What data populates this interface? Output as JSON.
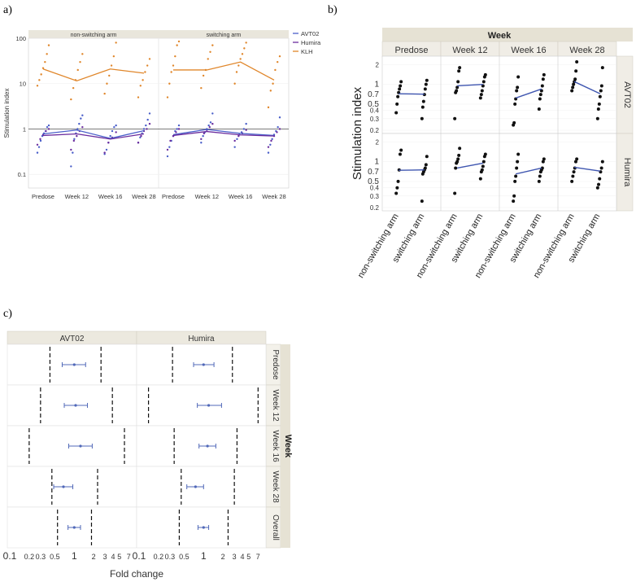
{
  "panel_labels": {
    "a": "a)",
    "b": "b)",
    "c": "c)"
  },
  "chart_data": [
    {
      "type": "scatter",
      "panel": "a",
      "ylabel": "Stimulation index",
      "yscale": "log",
      "ylim": [
        0.05,
        100
      ],
      "yticks": [
        0.1,
        1,
        10,
        100
      ],
      "yticklabels": [
        "0.1",
        "1",
        "10",
        "100"
      ],
      "reference_line": 1,
      "facets": [
        "non-switching arm",
        "switching arm"
      ],
      "categories": [
        "Predose",
        "Week 12",
        "Week 16",
        "Week 28"
      ],
      "legend": [
        "AVT02",
        "Humira",
        "KLH"
      ],
      "legend_position": "right",
      "colors": {
        "AVT02": "#4a5fc9",
        "Humira": "#6b2d9e",
        "KLH": "#e0862a"
      },
      "series": [
        {
          "name": "AVT02",
          "facet": "non-switching arm",
          "means": [
            0.78,
            0.95,
            0.62,
            0.92
          ]
        },
        {
          "name": "Humira",
          "facet": "non-switching arm",
          "means": [
            0.72,
            0.78,
            0.6,
            0.78
          ]
        },
        {
          "name": "KLH",
          "facet": "non-switching arm",
          "means": [
            21,
            11.5,
            21,
            17
          ]
        },
        {
          "name": "AVT02",
          "facet": "switching arm",
          "means": [
            0.75,
            0.98,
            0.8,
            0.72
          ]
        },
        {
          "name": "Humira",
          "facet": "switching arm",
          "means": [
            0.72,
            0.88,
            0.74,
            0.7
          ]
        },
        {
          "name": "KLH",
          "facet": "switching arm",
          "means": [
            20,
            20,
            30,
            12
          ]
        }
      ],
      "points": {
        "AVT02": [
          [
            [
              0.3,
              0.4,
              0.55,
              0.7,
              0.8,
              0.9,
              1.1,
              1.2
            ],
            [
              0.15,
              0.3,
              0.6,
              0.8,
              1.0,
              1.3,
              1.7,
              2.0
            ],
            [
              0.28,
              0.35,
              0.5,
              0.7,
              0.9,
              1.1,
              1.2
            ],
            [
              0.5,
              0.65,
              0.8,
              1.0,
              1.2,
              1.6,
              2.2
            ]
          ],
          [
            [
              0.25,
              0.4,
              0.55,
              0.7,
              0.9,
              1.0,
              1.2
            ],
            [
              0.5,
              0.7,
              0.85,
              1.0,
              1.2,
              1.4,
              2.2
            ],
            [
              0.4,
              0.6,
              0.75,
              0.85,
              1.0,
              1.3
            ],
            [
              0.3,
              0.45,
              0.6,
              0.75,
              0.9,
              1.1,
              1.8
            ]
          ]
        ],
        "Humira": [
          [
            [
              0.45,
              0.6,
              0.75,
              0.9,
              1.0
            ],
            [
              0.35,
              0.55,
              0.7,
              0.9,
              1.1
            ],
            [
              0.3,
              0.5,
              0.65,
              0.85
            ],
            [
              0.5,
              0.7,
              0.9,
              1.0,
              1.3
            ]
          ],
          [
            [
              0.35,
              0.55,
              0.7,
              0.85,
              1.0
            ],
            [
              0.6,
              0.8,
              0.95,
              1.1,
              1.3
            ],
            [
              0.55,
              0.7,
              0.8,
              0.95
            ],
            [
              0.4,
              0.55,
              0.7,
              0.85,
              1.0
            ]
          ]
        ],
        "KLH": [
          [
            [
              9,
              12,
              16,
              22,
              30,
              45,
              70
            ],
            [
              4.5,
              8,
              12,
              20,
              30,
              45
            ],
            [
              6,
              10,
              15,
              25,
              40,
              80
            ],
            [
              5,
              9,
              12,
              18,
              25,
              35
            ]
          ],
          [
            [
              5,
              10,
              18,
              25,
              40,
              70,
              85
            ],
            [
              8,
              15,
              20,
              35,
              50,
              70
            ],
            [
              10,
              18,
              25,
              35,
              45,
              60,
              80
            ],
            [
              3,
              7,
              10,
              20,
              30,
              40
            ]
          ]
        ]
      }
    },
    {
      "type": "scatter",
      "panel": "b",
      "title": "Week",
      "ylabel": "Stimulation index",
      "yscale": "log",
      "ylim": [
        0.2,
        2.4
      ],
      "yticks": [
        0.2,
        0.3,
        0.4,
        0.5,
        0.7,
        1,
        2
      ],
      "yticklabels": [
        "0.2",
        "0.3",
        "0.4",
        "0.5",
        "0.7",
        "1",
        "2"
      ],
      "columns": [
        "Predose",
        "Week 12",
        "Week 16",
        "Week 28"
      ],
      "rows": [
        "AVT02",
        "Humira"
      ],
      "x_categories": [
        "non-switching arm",
        "switching arm"
      ],
      "line_color": "#3f56b0",
      "means": {
        "AVT02": [
          [
            0.72,
            0.71
          ],
          [
            0.95,
            1.0
          ],
          [
            0.62,
            0.85
          ],
          [
            1.1,
            0.72
          ]
        ],
        "Humira": [
          [
            0.74,
            0.75
          ],
          [
            0.8,
            0.95
          ],
          [
            0.65,
            0.8
          ],
          [
            0.82,
            0.72
          ]
        ]
      },
      "points": {
        "AVT02": [
          [
            [
              0.37,
              0.5,
              0.65,
              0.75,
              0.85,
              0.95,
              1.1
            ],
            [
              0.3,
              0.45,
              0.55,
              0.7,
              0.85,
              1.0,
              1.15
            ]
          ],
          [
            [
              0.3,
              0.75,
              0.8,
              0.9,
              1.1,
              1.6,
              1.8
            ],
            [
              0.62,
              0.7,
              0.8,
              0.95,
              1.1,
              1.3,
              1.4
            ]
          ],
          [
            [
              0.24,
              0.26,
              0.5,
              0.6,
              0.8,
              0.9,
              1.3
            ],
            [
              0.42,
              0.6,
              0.7,
              0.8,
              0.95,
              1.2,
              1.4
            ]
          ],
          [
            [
              0.8,
              0.9,
              1.0,
              1.1,
              1.2,
              1.6,
              2.2
            ],
            [
              0.3,
              0.42,
              0.5,
              0.65,
              0.8,
              0.95,
              1.8
            ]
          ]
        ],
        "Humira": [
          [
            [
              0.33,
              0.4,
              0.5,
              0.75,
              1.3,
              1.5
            ],
            [
              0.25,
              0.65,
              0.7,
              0.75,
              0.8,
              0.9,
              1.2
            ]
          ],
          [
            [
              0.33,
              0.8,
              0.95,
              1.0,
              1.1,
              1.25,
              1.6
            ],
            [
              0.55,
              0.7,
              0.75,
              0.85,
              1.0,
              1.2,
              1.3
            ]
          ],
          [
            [
              0.25,
              0.3,
              0.5,
              0.6,
              0.8,
              1.0,
              1.3
            ],
            [
              0.5,
              0.6,
              0.7,
              0.75,
              0.8,
              1.0,
              1.1
            ]
          ],
          [
            [
              0.5,
              0.6,
              0.7,
              0.8,
              1.0,
              1.1
            ],
            [
              0.4,
              0.45,
              0.55,
              0.7,
              0.8,
              1.0
            ]
          ]
        ]
      }
    },
    {
      "type": "forest",
      "panel": "c",
      "xlabel": "Fold change",
      "xscale": "log",
      "xlim": [
        0.1,
        8.5
      ],
      "xticks": [
        0.1,
        0.2,
        0.3,
        0.5,
        1,
        2,
        3,
        4,
        5,
        7
      ],
      "xticklabels": [
        "0.1",
        "0.2",
        "0.3",
        "0.5",
        "1",
        "2",
        "3",
        "4",
        "5",
        "7"
      ],
      "columns": [
        "AVT02",
        "Humira"
      ],
      "rows": [
        "Predose",
        "Week 12",
        "Week 16",
        "Week 28",
        "Overall"
      ],
      "row_group_label": "Week",
      "color": "#5068b8",
      "estimates": {
        "AVT02": [
          {
            "est": 1.0,
            "lo": 0.65,
            "hi": 1.5,
            "bound_lo": 0.42,
            "bound_hi": 2.6
          },
          {
            "est": 1.05,
            "lo": 0.7,
            "hi": 1.6,
            "bound_lo": 0.3,
            "bound_hi": 3.9
          },
          {
            "est": 1.25,
            "lo": 0.82,
            "hi": 1.9,
            "bound_lo": 0.2,
            "bound_hi": 6.0
          },
          {
            "est": 0.68,
            "lo": 0.48,
            "hi": 0.95,
            "bound_lo": 0.45,
            "bound_hi": 2.3
          },
          {
            "est": 1.0,
            "lo": 0.8,
            "hi": 1.25,
            "bound_lo": 0.55,
            "bound_hi": 1.85
          }
        ],
        "Humira": [
          {
            "est": 1.0,
            "lo": 0.7,
            "hi": 1.45,
            "bound_lo": 0.33,
            "bound_hi": 2.8
          },
          {
            "est": 1.2,
            "lo": 0.8,
            "hi": 1.9,
            "bound_lo": 0.14,
            "bound_hi": 7.0
          },
          {
            "est": 1.15,
            "lo": 0.85,
            "hi": 1.55,
            "bound_lo": 0.35,
            "bound_hi": 3.3
          },
          {
            "est": 0.75,
            "lo": 0.55,
            "hi": 1.0,
            "bound_lo": 0.45,
            "bound_hi": 3.0
          },
          {
            "est": 1.0,
            "lo": 0.82,
            "hi": 1.2,
            "bound_lo": 0.42,
            "bound_hi": 2.4
          }
        ]
      }
    }
  ]
}
